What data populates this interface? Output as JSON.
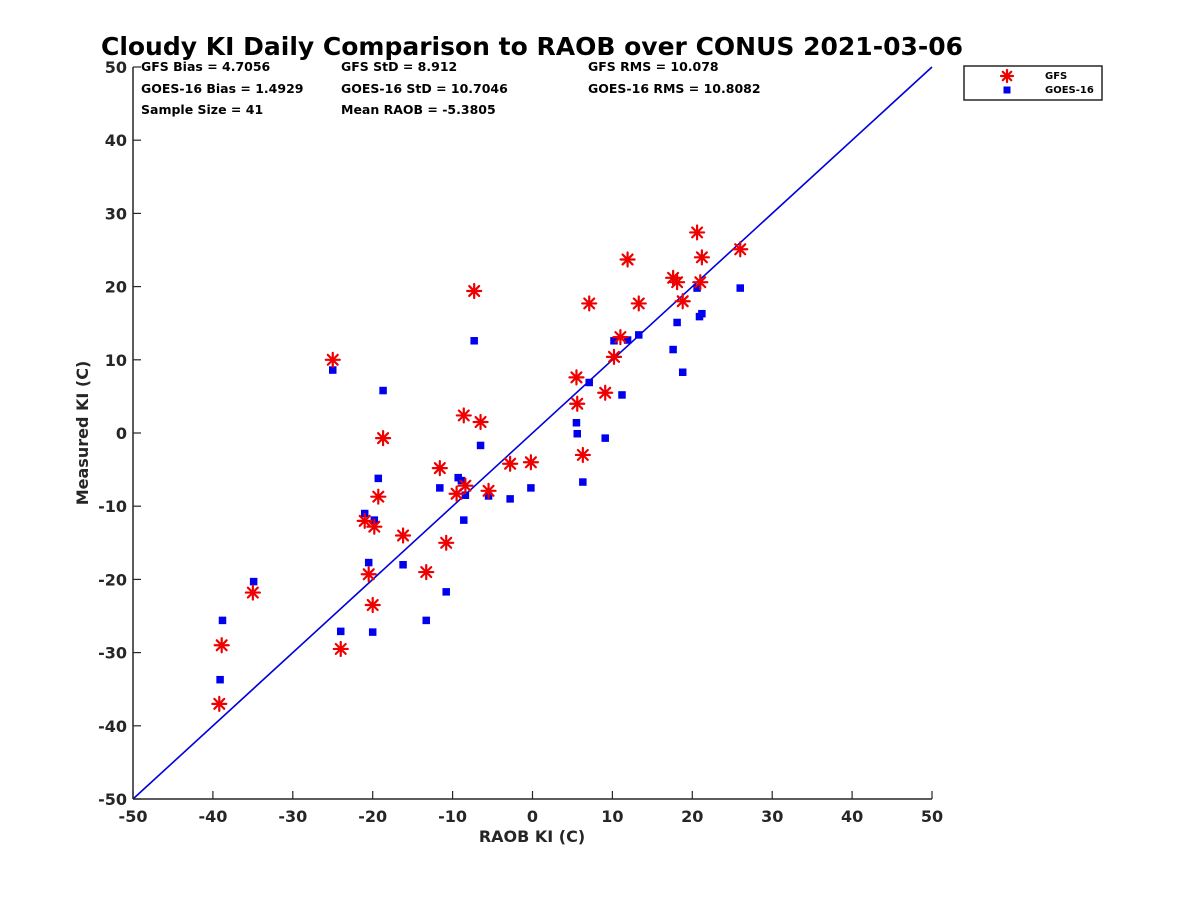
{
  "chart_data": {
    "type": "scatter",
    "title": "Cloudy KI Daily Comparison to RAOB over CONUS 2021-03-06",
    "xlabel": "RAOB KI (C)",
    "ylabel": "Measured KI (C)",
    "xlim": [
      -50,
      50
    ],
    "ylim": [
      -50,
      50
    ],
    "xticks": [
      "-50",
      "-40",
      "-30",
      "-20",
      "-10",
      "0",
      "10",
      "20",
      "30",
      "40",
      "50"
    ],
    "yticks": [
      "50",
      "40",
      "30",
      "20",
      "10",
      "0",
      "-10",
      "-20",
      "-30",
      "-40",
      "-50"
    ],
    "grid": false,
    "legend_position": "top-right outside",
    "reference_line": {
      "from": [
        -50,
        -50
      ],
      "to": [
        50,
        50
      ],
      "color": "#0000dd"
    },
    "stats": [
      "GFS Bias = 4.7056",
      "GFS StD = 8.912",
      "GFS RMS = 10.078",
      "GOES-16 Bias = 1.4929",
      "GOES-16 StD = 10.7046",
      "GOES-16 RMS = 10.8082",
      "Sample Size = 41",
      "Mean RAOB = -5.3805"
    ],
    "series": [
      {
        "name": "GFS",
        "marker": "asterisk",
        "color": "#ee0000",
        "x": [
          -39.2,
          -38.9,
          -35.0,
          -25.0,
          -24.0,
          -21.0,
          -20.5,
          -20.0,
          -19.8,
          -19.3,
          -18.7,
          -16.2,
          -13.3,
          -11.6,
          -10.8,
          -9.5,
          -8.6,
          -8.4,
          -7.3,
          -6.5,
          -5.5,
          -2.8,
          -0.2,
          5.5,
          5.6,
          6.3,
          7.1,
          9.1,
          10.2,
          11.0,
          11.9,
          13.3,
          17.6,
          18.1,
          18.8,
          20.6,
          21.0,
          21.2,
          26.0
        ],
        "y": [
          -37.0,
          -29.0,
          -21.8,
          10.0,
          -29.5,
          -12.0,
          -19.3,
          -23.5,
          -12.8,
          -8.7,
          -0.7,
          -14.0,
          -19.0,
          -4.8,
          -15.0,
          -8.3,
          2.4,
          -7.2,
          19.4,
          1.5,
          -7.9,
          -4.2,
          -4.0,
          7.6,
          4.0,
          -3.0,
          17.7,
          5.5,
          10.4,
          13.1,
          23.7,
          17.7,
          21.2,
          20.6,
          18.0,
          27.4,
          20.6,
          24.0,
          25.1
        ]
      },
      {
        "name": "GOES-16",
        "marker": "square",
        "color": "#0000ee",
        "x": [
          -39.1,
          -38.8,
          -34.9,
          -25.0,
          -24.0,
          -21.0,
          -20.5,
          -20.0,
          -19.8,
          -19.3,
          -18.7,
          -16.2,
          -13.3,
          -11.6,
          -10.8,
          -9.3,
          -8.9,
          -8.6,
          -8.4,
          -7.3,
          -6.5,
          -5.5,
          -2.8,
          -0.2,
          5.5,
          5.6,
          6.3,
          7.1,
          9.1,
          10.2,
          11.2,
          11.9,
          13.3,
          17.6,
          18.1,
          18.8,
          20.6,
          20.9,
          21.2,
          26.0
        ],
        "y": [
          -33.7,
          -25.6,
          -20.3,
          8.6,
          -27.1,
          -11.0,
          -17.7,
          -27.2,
          -11.9,
          -6.2,
          5.8,
          -18.0,
          -25.6,
          -7.5,
          -21.7,
          -6.1,
          -6.5,
          -11.9,
          -8.5,
          12.6,
          -1.7,
          -8.6,
          -9.0,
          -7.5,
          1.4,
          -0.1,
          -6.7,
          6.9,
          -0.7,
          12.6,
          5.2,
          12.7,
          13.4,
          11.4,
          15.1,
          8.3,
          19.8,
          15.9,
          16.3,
          19.8
        ]
      }
    ]
  }
}
